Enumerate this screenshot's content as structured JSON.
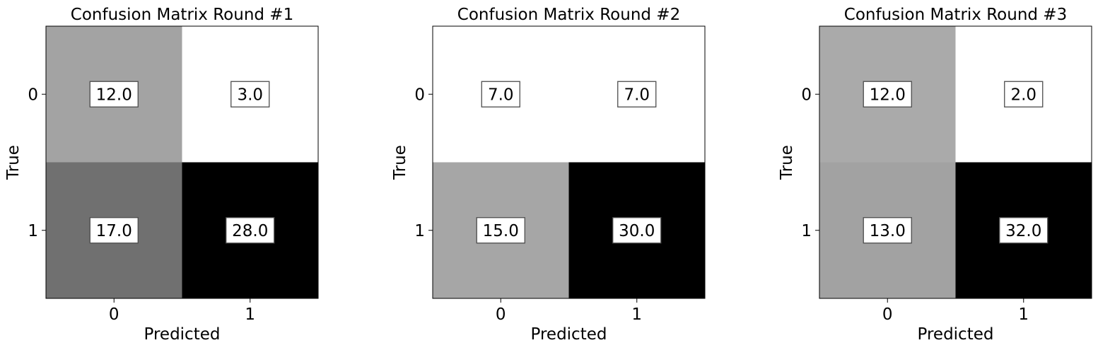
{
  "chart_data": [
    {
      "type": "heatmap",
      "title": "Confusion Matrix Round #1",
      "xlabel": "Predicted",
      "ylabel": "True",
      "x_categories": [
        "0",
        "1"
      ],
      "y_categories": [
        "0",
        "1"
      ],
      "values": [
        [
          12.0,
          3.0
        ],
        [
          17.0,
          28.0
        ]
      ],
      "value_labels": [
        [
          "12.0",
          "3.0"
        ],
        [
          "17.0",
          "28.0"
        ]
      ],
      "colormap": "grays (white = low, black = high)"
    },
    {
      "type": "heatmap",
      "title": "Confusion Matrix Round #2",
      "xlabel": "Predicted",
      "ylabel": "True",
      "x_categories": [
        "0",
        "1"
      ],
      "y_categories": [
        "0",
        "1"
      ],
      "values": [
        [
          7.0,
          7.0
        ],
        [
          15.0,
          30.0
        ]
      ],
      "value_labels": [
        [
          "7.0",
          "7.0"
        ],
        [
          "15.0",
          "30.0"
        ]
      ],
      "colormap": "grays (white = low, black = high)"
    },
    {
      "type": "heatmap",
      "title": "Confusion Matrix Round #3",
      "xlabel": "Predicted",
      "ylabel": "True",
      "x_categories": [
        "0",
        "1"
      ],
      "y_categories": [
        "0",
        "1"
      ],
      "values": [
        [
          12.0,
          2.0
        ],
        [
          13.0,
          32.0
        ]
      ],
      "value_labels": [
        [
          "12.0",
          "2.0"
        ],
        [
          "13.0",
          "32.0"
        ]
      ],
      "colormap": "grays (white = low, black = high)"
    }
  ]
}
